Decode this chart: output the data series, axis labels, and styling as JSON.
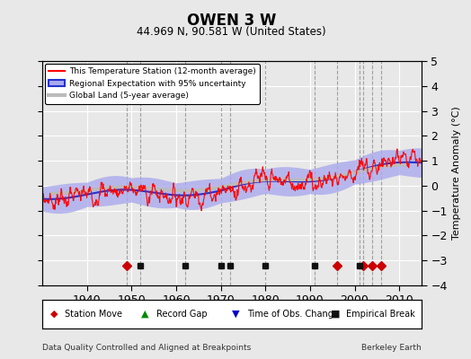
{
  "title": "OWEN 3 W",
  "subtitle": "44.969 N, 90.581 W (United States)",
  "ylabel": "Temperature Anomaly (°C)",
  "footer_left": "Data Quality Controlled and Aligned at Breakpoints",
  "footer_right": "Berkeley Earth",
  "xlim": [
    1930,
    2015
  ],
  "ylim": [
    -4,
    5
  ],
  "yticks": [
    -4,
    -3,
    -2,
    -1,
    0,
    1,
    2,
    3,
    4,
    5
  ],
  "xticks": [
    1940,
    1950,
    1960,
    1970,
    1980,
    1990,
    2000,
    2010
  ],
  "bg_color": "#e8e8e8",
  "plot_bg": "#e8e8e8",
  "station_line_color": "#ff0000",
  "regional_line_color": "#2233cc",
  "regional_band_color": "#aaaaee",
  "global_line_color": "#bbbbbb",
  "legend_labels": [
    "This Temperature Station (12-month average)",
    "Regional Expectation with 95% uncertainty",
    "Global Land (5-year average)"
  ],
  "station_moves": [
    1949,
    1996,
    2002,
    2004,
    2006
  ],
  "empirical_breaks": [
    1952,
    1962,
    1970,
    1972,
    1980,
    1991,
    2001
  ],
  "vline_color": "#999999",
  "vline_style": "--",
  "vline_lw": 0.8,
  "marker_y": -3.2
}
